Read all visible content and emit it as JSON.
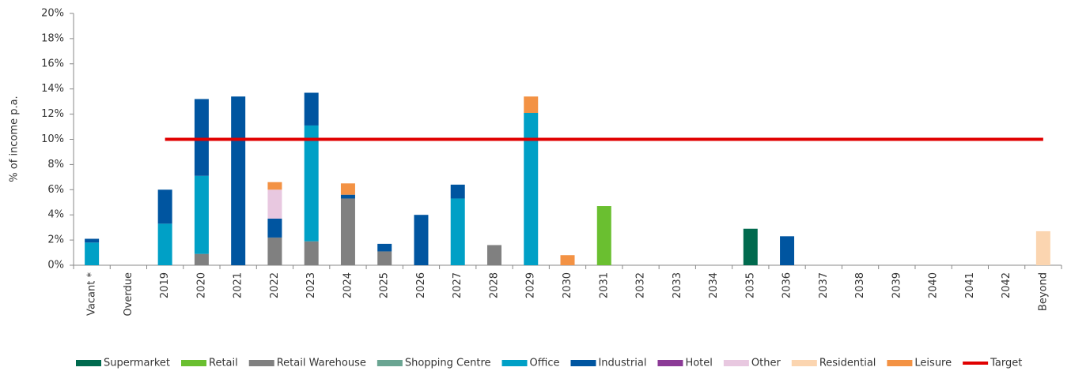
{
  "chart_data": {
    "type": "bar",
    "stacked": true,
    "y_label": "% of income p.a.",
    "categories": [
      "Vacant *",
      "Overdue",
      "2019",
      "2020",
      "2021",
      "2022",
      "2023",
      "2024",
      "2025",
      "2026",
      "2027",
      "2028",
      "2029",
      "2030",
      "2031",
      "2032",
      "2033",
      "2034",
      "2035",
      "2036",
      "2037",
      "2038",
      "2039",
      "2040",
      "2041",
      "2042",
      "Beyond"
    ],
    "ylim": [
      0,
      20
    ],
    "yticks": [
      {
        "value": 0,
        "label": "0%"
      },
      {
        "value": 2,
        "label": "2%"
      },
      {
        "value": 4,
        "label": "4%"
      },
      {
        "value": 6,
        "label": "6%"
      },
      {
        "value": 8,
        "label": "8%"
      },
      {
        "value": 10,
        "label": "10%"
      },
      {
        "value": 12,
        "label": "12%"
      },
      {
        "value": 14,
        "label": "14%"
      },
      {
        "value": 16,
        "label": "16%"
      },
      {
        "value": 18,
        "label": "18%"
      },
      {
        "value": 20,
        "label": "20%"
      }
    ],
    "legend": "bottom",
    "series": [
      {
        "name": "Supermarket",
        "color": "#006a4e",
        "values": [
          null,
          null,
          null,
          null,
          null,
          null,
          null,
          null,
          null,
          null,
          null,
          null,
          null,
          null,
          null,
          null,
          null,
          null,
          2.9,
          null,
          null,
          null,
          null,
          null,
          null,
          null,
          null
        ]
      },
      {
        "name": "Retail",
        "color": "#6abf30",
        "values": [
          null,
          null,
          null,
          null,
          null,
          null,
          null,
          null,
          null,
          null,
          null,
          null,
          null,
          null,
          4.7,
          null,
          null,
          null,
          null,
          null,
          null,
          null,
          null,
          null,
          null,
          null,
          null
        ]
      },
      {
        "name": "Retail Warehouse",
        "color": "#808080",
        "values": [
          null,
          null,
          null,
          0.9,
          null,
          2.2,
          1.9,
          5.3,
          1.1,
          null,
          null,
          1.6,
          null,
          null,
          null,
          null,
          null,
          null,
          null,
          null,
          null,
          null,
          null,
          null,
          null,
          null,
          null
        ]
      },
      {
        "name": "Shopping Centre",
        "color": "#6aa592",
        "values": [
          null,
          null,
          null,
          null,
          null,
          null,
          null,
          null,
          null,
          null,
          null,
          null,
          null,
          null,
          null,
          null,
          null,
          null,
          null,
          null,
          null,
          null,
          null,
          null,
          null,
          null,
          null
        ]
      },
      {
        "name": "Office",
        "color": "#00a0c6",
        "values": [
          1.8,
          null,
          3.3,
          6.2,
          null,
          null,
          9.2,
          null,
          null,
          null,
          5.3,
          null,
          12.1,
          null,
          null,
          null,
          null,
          null,
          null,
          null,
          null,
          null,
          null,
          null,
          null,
          null,
          null
        ]
      },
      {
        "name": "Industrial",
        "color": "#0055a0",
        "values": [
          0.3,
          null,
          2.7,
          6.1,
          13.4,
          1.5,
          2.6,
          0.3,
          0.6,
          4.0,
          1.1,
          null,
          null,
          null,
          null,
          null,
          null,
          null,
          null,
          2.3,
          null,
          null,
          null,
          null,
          null,
          null,
          null
        ]
      },
      {
        "name": "Hotel",
        "color": "#8b3a96",
        "values": [
          null,
          null,
          null,
          null,
          null,
          null,
          null,
          null,
          null,
          null,
          null,
          null,
          null,
          null,
          null,
          null,
          null,
          null,
          null,
          null,
          null,
          null,
          null,
          null,
          null,
          null,
          null
        ]
      },
      {
        "name": "Other",
        "color": "#e8c8e0",
        "values": [
          null,
          null,
          null,
          null,
          null,
          2.3,
          null,
          null,
          null,
          null,
          null,
          null,
          null,
          null,
          null,
          null,
          null,
          null,
          null,
          null,
          null,
          null,
          null,
          null,
          null,
          null,
          null
        ]
      },
      {
        "name": "Residential",
        "color": "#fbd5b0",
        "values": [
          null,
          null,
          null,
          null,
          null,
          null,
          null,
          null,
          null,
          null,
          null,
          null,
          null,
          null,
          null,
          null,
          null,
          null,
          null,
          null,
          null,
          null,
          null,
          null,
          null,
          null,
          2.7
        ]
      },
      {
        "name": "Leisure",
        "color": "#f39244",
        "values": [
          null,
          null,
          null,
          null,
          null,
          0.6,
          null,
          0.9,
          null,
          null,
          null,
          null,
          1.3,
          0.8,
          null,
          null,
          null,
          null,
          null,
          null,
          null,
          null,
          null,
          null,
          null,
          null,
          null
        ]
      },
      {
        "name": "Target",
        "type": "line",
        "color": "#e00000",
        "values": [
          null,
          null,
          10,
          10,
          10,
          10,
          10,
          10,
          10,
          10,
          10,
          10,
          10,
          10,
          10,
          10,
          10,
          10,
          10,
          10,
          10,
          10,
          10,
          10,
          10,
          10,
          10
        ]
      }
    ]
  }
}
